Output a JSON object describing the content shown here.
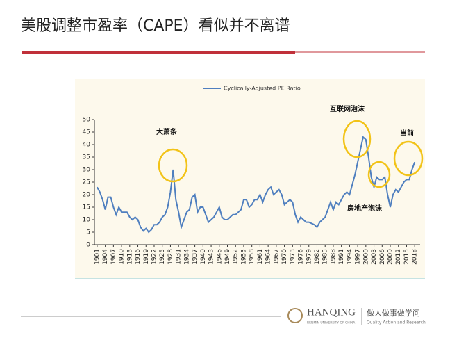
{
  "slide": {
    "title": "美股调整市盈率（CAPE）看似并不离谱",
    "footer": {
      "brand": "HANQING",
      "brand_sub": "RENMIN UNIVERSITY OF CHINA",
      "motto": "做人做事做学问",
      "motto_sub": "Quality Action and Research"
    }
  },
  "chart_data": {
    "type": "line",
    "x": [
      1901,
      1902,
      1903,
      1904,
      1905,
      1906,
      1907,
      1908,
      1909,
      1910,
      1911,
      1912,
      1913,
      1914,
      1915,
      1916,
      1917,
      1918,
      1919,
      1920,
      1921,
      1922,
      1923,
      1924,
      1925,
      1926,
      1927,
      1928,
      1929,
      1930,
      1931,
      1932,
      1933,
      1934,
      1935,
      1936,
      1937,
      1938,
      1939,
      1940,
      1941,
      1942,
      1943,
      1944,
      1945,
      1946,
      1947,
      1948,
      1949,
      1950,
      1951,
      1952,
      1953,
      1954,
      1955,
      1956,
      1957,
      1958,
      1959,
      1960,
      1961,
      1962,
      1963,
      1964,
      1965,
      1966,
      1967,
      1968,
      1969,
      1970,
      1971,
      1972,
      1973,
      1974,
      1975,
      1976,
      1977,
      1978,
      1979,
      1980,
      1981,
      1982,
      1983,
      1984,
      1985,
      1986,
      1987,
      1988,
      1989,
      1990,
      1991,
      1992,
      1993,
      1994,
      1995,
      1996,
      1997,
      1998,
      1999,
      2000,
      2001,
      2002,
      2003,
      2004,
      2005,
      2006,
      2007,
      2008,
      2009,
      2010,
      2011,
      2012,
      2013,
      2014,
      2015,
      2016,
      2017,
      2018
    ],
    "series": [
      {
        "name": "Cyclically-Adjusted PE Ratio",
        "color": "#4f7fbf",
        "values": [
          23,
          21,
          18,
          14,
          19,
          19,
          15,
          12,
          15,
          13,
          13,
          13,
          11,
          10,
          11,
          10,
          7,
          5.5,
          6.5,
          5,
          6,
          8,
          8,
          9,
          11,
          12,
          15,
          21,
          30,
          18,
          13,
          7,
          10,
          13,
          14,
          19,
          20,
          13,
          15,
          15,
          12,
          9,
          10,
          11,
          13,
          15,
          11,
          10,
          10,
          11,
          12,
          12,
          13,
          14,
          18,
          18,
          15,
          16,
          18,
          18,
          20,
          17,
          20,
          22,
          23,
          20,
          21,
          22,
          20,
          16,
          17,
          18,
          17,
          12,
          9,
          11,
          10,
          9,
          9,
          8.5,
          8,
          7,
          9,
          10,
          11,
          14,
          17,
          14,
          17,
          16,
          18,
          20,
          21,
          20,
          24,
          28,
          33,
          38,
          43,
          42,
          35,
          27,
          23,
          27,
          26,
          26,
          27,
          20,
          15,
          20,
          22,
          21,
          23,
          25,
          26,
          26,
          30,
          33
        ]
      }
    ],
    "xlim": [
      1900,
      2020
    ],
    "xticks": [
      1901,
      1904,
      1907,
      1910,
      1913,
      1916,
      1919,
      1922,
      1925,
      1928,
      1931,
      1934,
      1937,
      1940,
      1943,
      1946,
      1949,
      1952,
      1955,
      1958,
      1961,
      1964,
      1967,
      1970,
      1973,
      1976,
      1979,
      1982,
      1985,
      1988,
      1991,
      1994,
      1997,
      2000,
      2003,
      2006,
      2009,
      2012,
      2015,
      2018
    ],
    "ylim": [
      0,
      50
    ],
    "yticks": [
      0,
      5,
      10,
      15,
      20,
      25,
      30,
      35,
      40,
      45,
      50
    ],
    "annotations": [
      "大萧条",
      "互联网泡沫",
      "房地产泡沫",
      "当前"
    ]
  }
}
